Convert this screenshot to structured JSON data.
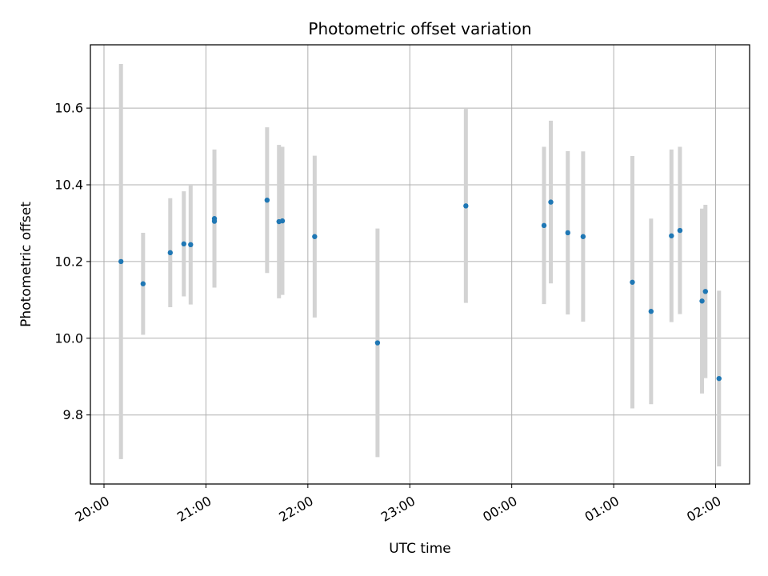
{
  "chart_data": {
    "type": "scatter",
    "title": "Photometric offset variation",
    "xlabel": "UTC time",
    "ylabel": "Photometric offset",
    "x_unit": "UTC",
    "x_tick_labels": [
      "20:00",
      "21:00",
      "22:00",
      "23:00",
      "00:00",
      "01:00",
      "02:00"
    ],
    "y_tick_labels": [
      "9.8",
      "10.0",
      "10.2",
      "10.4",
      "10.6"
    ],
    "xlim": [
      "19:52",
      "02:20"
    ],
    "ylim": [
      9.62,
      10.765
    ],
    "grid": true,
    "colors": {
      "point": "#1f77b4",
      "errorbar": "#d3d3d3",
      "grid": "#b0b0b0"
    },
    "series": [
      {
        "points": [
          {
            "x": "20:10",
            "y": 10.2,
            "yerr": 0.515
          },
          {
            "x": "20:23",
            "y": 10.142,
            "yerr": 0.133
          },
          {
            "x": "20:39",
            "y": 10.223,
            "yerr": 0.142
          },
          {
            "x": "20:47",
            "y": 10.246,
            "yerr": 0.137
          },
          {
            "x": "20:51",
            "y": 10.244,
            "yerr": 0.156
          },
          {
            "x": "21:05",
            "y": 10.312,
            "yerr": 0.18
          },
          {
            "x": "21:05",
            "y": 10.305,
            "yerr": 0.165
          },
          {
            "x": "21:36",
            "y": 10.36,
            "yerr": 0.19
          },
          {
            "x": "21:43",
            "y": 10.304,
            "yerr": 0.2
          },
          {
            "x": "21:45",
            "y": 10.306,
            "yerr": 0.193
          },
          {
            "x": "22:04",
            "y": 10.265,
            "yerr": 0.211
          },
          {
            "x": "22:41",
            "y": 9.988,
            "yerr": 0.298
          },
          {
            "x": "23:33",
            "y": 10.345,
            "yerr": 0.253
          },
          {
            "x": "00:19",
            "y": 10.294,
            "yerr": 0.205
          },
          {
            "x": "00:23",
            "y": 10.355,
            "yerr": 0.212
          },
          {
            "x": "00:33",
            "y": 10.275,
            "yerr": 0.213
          },
          {
            "x": "00:42",
            "y": 10.265,
            "yerr": 0.222
          },
          {
            "x": "01:11",
            "y": 10.146,
            "yerr": 0.329
          },
          {
            "x": "01:22",
            "y": 10.07,
            "yerr": 0.242
          },
          {
            "x": "01:34",
            "y": 10.267,
            "yerr": 0.225
          },
          {
            "x": "01:39",
            "y": 10.281,
            "yerr": 0.218
          },
          {
            "x": "01:52",
            "y": 10.097,
            "yerr": 0.241
          },
          {
            "x": "01:54",
            "y": 10.122,
            "yerr": 0.226
          },
          {
            "x": "02:02",
            "y": 9.895,
            "yerr": 0.229
          }
        ]
      }
    ]
  }
}
